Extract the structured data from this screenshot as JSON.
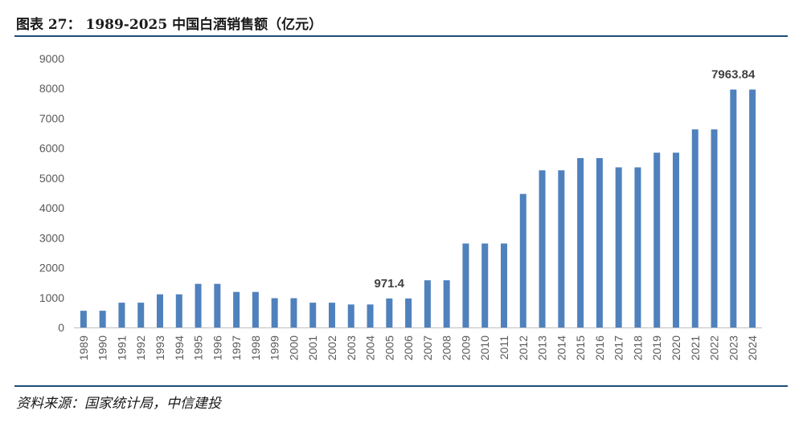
{
  "title": "图表 27：  1989-2025 中国白酒销售额（亿元）",
  "source": "资料来源：国家统计局，中信建投",
  "colors": {
    "bar": "#4f81bd",
    "axis": "#bfbfbf",
    "rule": "#1e4d78"
  },
  "chart_data": {
    "type": "bar",
    "title": "1989-2025 中国白酒销售额（亿元）",
    "xlabel": "",
    "ylabel": "",
    "ylim": [
      0,
      9000
    ],
    "yticks": [
      0,
      1000,
      2000,
      3000,
      4000,
      5000,
      6000,
      7000,
      8000,
      9000
    ],
    "categories": [
      "1989",
      "1990",
      "1991",
      "1992",
      "1993",
      "1994",
      "1995",
      "1996",
      "1997",
      "1998",
      "1999",
      "2000",
      "2001",
      "2002",
      "2003",
      "2004",
      "2005",
      "2006",
      "2007",
      "2008",
      "2009",
      "2010",
      "2011",
      "2012",
      "2013",
      "2014",
      "2015",
      "2016",
      "2017",
      "2018",
      "2019",
      "2020",
      "2021",
      "2022",
      "2023",
      "2024"
    ],
    "values": [
      560,
      560,
      830,
      830,
      1110,
      1110,
      1460,
      1460,
      1190,
      1190,
      980,
      980,
      830,
      830,
      770,
      770,
      971.4,
      971.4,
      1580,
      1580,
      2810,
      2810,
      2810,
      4470,
      5260,
      5260,
      5670,
      5670,
      5360,
      5360,
      5850,
      5850,
      6630,
      6630,
      7963.84,
      7963.84
    ],
    "data_labels": [
      {
        "category": "2005",
        "text": "971.4"
      },
      {
        "category": "2023",
        "text": "7963.84"
      }
    ]
  }
}
